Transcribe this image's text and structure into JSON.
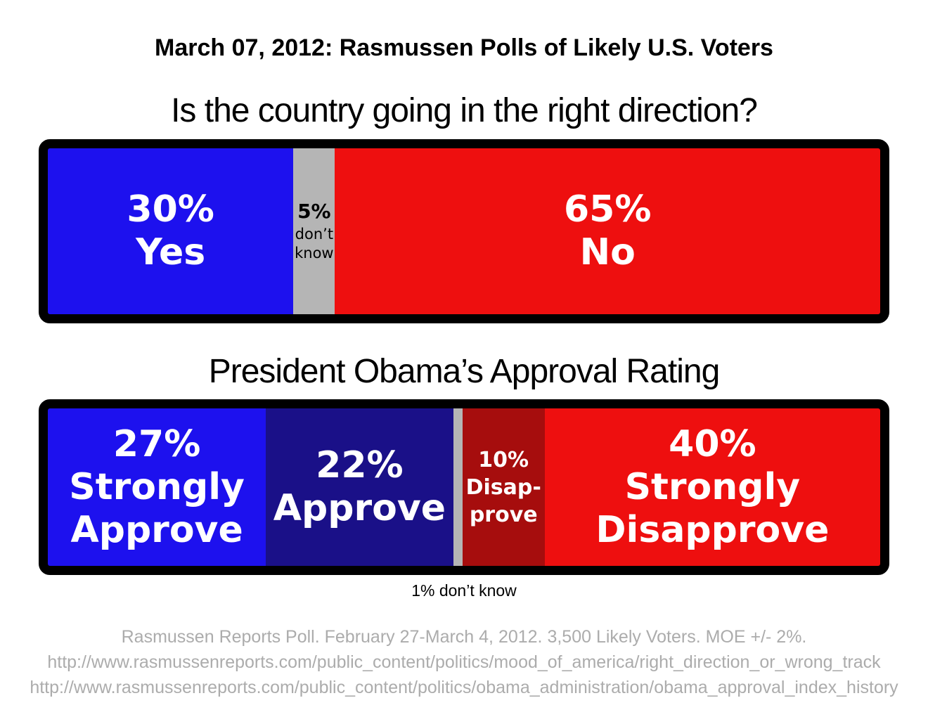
{
  "title": "March 07, 2012: Rasmussen Polls of Likely U.S. Voters",
  "palette": {
    "bright_blue": "#1D11EE",
    "navy_blue": "#1A1088",
    "gray": "#B5B5B5",
    "bright_red": "#EE0F0F",
    "dark_red": "#A60D0D",
    "border_black": "#000000",
    "footer_gray": "#ACACAC"
  },
  "chart_data": [
    {
      "type": "bar",
      "subtype": "horizontal-stacked-100pct",
      "title": "Is the country going in the right direction?",
      "categories": [
        "Yes",
        "don't know",
        "No"
      ],
      "values": [
        30,
        5,
        65
      ],
      "segments": [
        {
          "name": "yes",
          "value": 30,
          "width_pct": 29.5,
          "color": "#1D11EE",
          "text_color": "#FFFFFF",
          "lines": [
            "30%",
            "Yes"
          ]
        },
        {
          "name": "dont-know",
          "value": 5,
          "width_pct": 5.0,
          "color": "#B5B5B5",
          "text_color": "#000000",
          "lines": [
            "5%",
            "don’t",
            "know"
          ]
        },
        {
          "name": "no",
          "value": 65,
          "width_pct": 65.5,
          "color": "#EE0F0F",
          "text_color": "#FFFFFF",
          "lines": [
            "65%",
            "No"
          ]
        }
      ]
    },
    {
      "type": "bar",
      "subtype": "horizontal-stacked-100pct",
      "title": "President Obama’s Approval Rating",
      "categories": [
        "Strongly Approve",
        "Approve",
        "don't know",
        "Disapprove",
        "Strongly Disapprove"
      ],
      "values": [
        27,
        22,
        1,
        10,
        40
      ],
      "segments": [
        {
          "name": "strongly-approve",
          "value": 27,
          "width_pct": 26.2,
          "color": "#1D11EE",
          "text_color": "#FFFFFF",
          "lines": [
            "27%",
            "Strongly",
            "Approve"
          ]
        },
        {
          "name": "approve",
          "value": 22,
          "width_pct": 22.5,
          "color": "#1A1088",
          "text_color": "#FFFFFF",
          "lines": [
            "22%",
            "Approve"
          ]
        },
        {
          "name": "dont-know",
          "value": 1,
          "width_pct": 1.1,
          "color": "#B5B5B5",
          "text_color": "#000000",
          "lines": []
        },
        {
          "name": "disapprove",
          "value": 10,
          "width_pct": 9.9,
          "color": "#A60D0D",
          "text_color": "#FFFFFF",
          "lines": [
            "10%",
            "Disap-",
            "prove"
          ]
        },
        {
          "name": "strongly-disapprove",
          "value": 40,
          "width_pct": 40.3,
          "color": "#EE0F0F",
          "text_color": "#FFFFFF",
          "lines": [
            "40%",
            "Strongly",
            "Disapprove"
          ]
        }
      ],
      "footnote": "1% don’t know"
    }
  ],
  "footer": {
    "lines": [
      "Rasmussen Reports Poll. February 27-March 4, 2012. 3,500 Likely Voters. MOE +/- 2%.",
      "http://www.rasmussenreports.com/public_content/politics/mood_of_america/right_direction_or_wrong_track",
      "http://www.rasmussenreports.com/public_content/politics/obama_administration/obama_approval_index_history"
    ]
  }
}
